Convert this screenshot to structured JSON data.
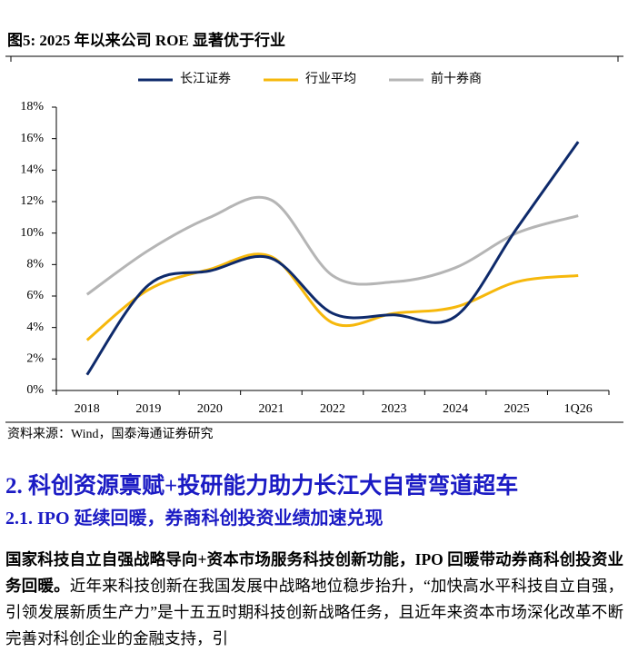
{
  "figure_title": "图5:  2025 年以来公司 ROE 显著优于行业",
  "chart_data": {
    "type": "line",
    "categories": [
      "2018",
      "2019",
      "2020",
      "2021",
      "2022",
      "2023",
      "2024",
      "2025",
      "1Q26"
    ],
    "series": [
      {
        "name": "长江证券",
        "color": "#0e2a6b",
        "values": [
          1.0,
          6.7,
          7.6,
          8.4,
          4.9,
          4.8,
          4.7,
          10.3,
          15.8
        ]
      },
      {
        "name": "行业平均",
        "color": "#f6b80c",
        "values": [
          3.2,
          6.4,
          7.7,
          8.5,
          4.3,
          4.9,
          5.3,
          6.9,
          7.3
        ]
      },
      {
        "name": "前十券商",
        "color": "#b5b5b5",
        "values": [
          6.1,
          8.9,
          11.0,
          12.1,
          7.3,
          6.9,
          7.8,
          10.0,
          11.1
        ]
      }
    ],
    "ylim": [
      0,
      18
    ],
    "yticks": [
      {
        "value": 0,
        "label": "0%"
      },
      {
        "value": 2,
        "label": "2%"
      },
      {
        "value": 4,
        "label": "4%"
      },
      {
        "value": 6,
        "label": "6%"
      },
      {
        "value": 8,
        "label": "8%"
      },
      {
        "value": 10,
        "label": "10%"
      },
      {
        "value": 12,
        "label": "12%"
      },
      {
        "value": 14,
        "label": "14%"
      },
      {
        "value": 16,
        "label": "16%"
      },
      {
        "value": 18,
        "label": "18%"
      }
    ],
    "smooth": true
  },
  "source": "资料来源：Wind，国泰海通证券研究",
  "section_heading": "2.  科创资源禀赋+投研能力助力长江大自营弯道超车",
  "subsection_heading": "2.1.   IPO 延续回暖，券商科创投资业绩加速兑现",
  "paragraph": {
    "bold": "国家科技自立自强战略导向+资本市场服务科技创新功能，IPO 回暖带动券商科创投资业务回暖。",
    "text": "近年来科技创新在我国发展中战略地位稳步抬升，“加快高水平科技自立自强，引领发展新质生产力”是十五五时期科技创新战略任务，且近年来资本市场深化改革不断完善对科创企业的金融支持，引"
  }
}
